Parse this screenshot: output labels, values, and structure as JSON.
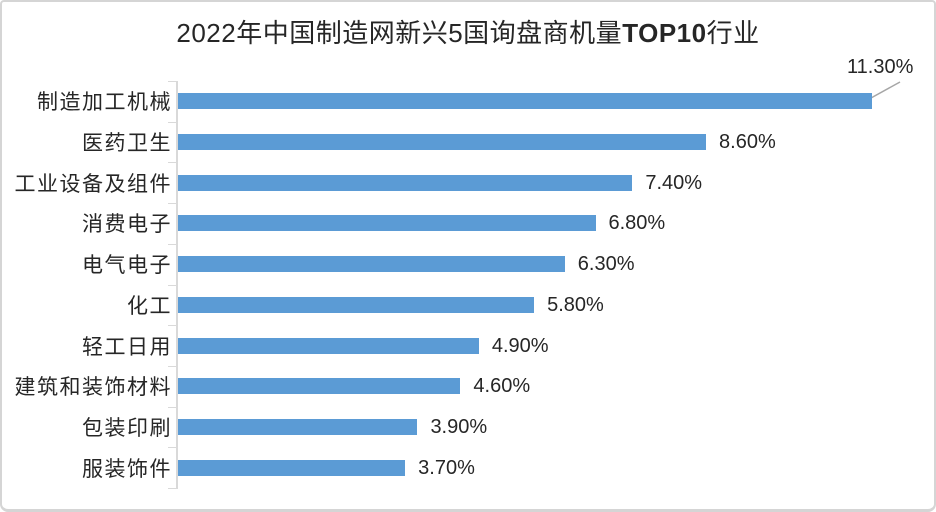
{
  "title_parts": {
    "prefix": "2022年中国制造网新兴5国询盘商机量",
    "bold": "TOP10",
    "suffix": "行业"
  },
  "colors": {
    "bar": "#5b9bd5",
    "axis": "#d9d9d9",
    "text": "#262626",
    "leader": "#a6a6a6"
  },
  "chart_data": {
    "type": "bar",
    "orientation": "horizontal",
    "title": "2022年中国制造网新兴5国询盘商机量TOP10行业",
    "xlabel": "",
    "ylabel": "",
    "categories": [
      "制造加工机械",
      "医药卫生",
      "工业设备及组件",
      "消费电子",
      "电气电子",
      "化工",
      "轻工日用",
      "建筑和装饰材料",
      "包装印刷",
      "服装饰件"
    ],
    "values": [
      11.3,
      8.6,
      7.4,
      6.8,
      6.3,
      5.8,
      4.9,
      4.6,
      3.9,
      3.7
    ],
    "value_labels": [
      "11.30%",
      "8.60%",
      "7.40%",
      "6.80%",
      "6.30%",
      "5.80%",
      "4.90%",
      "4.60%",
      "3.90%",
      "3.70%"
    ],
    "unit": "%",
    "xlim": [
      0,
      12.4
    ],
    "grid": false,
    "legend": null,
    "sorted": "descending",
    "callout_index": 0,
    "data_label_position": "outside-end"
  }
}
